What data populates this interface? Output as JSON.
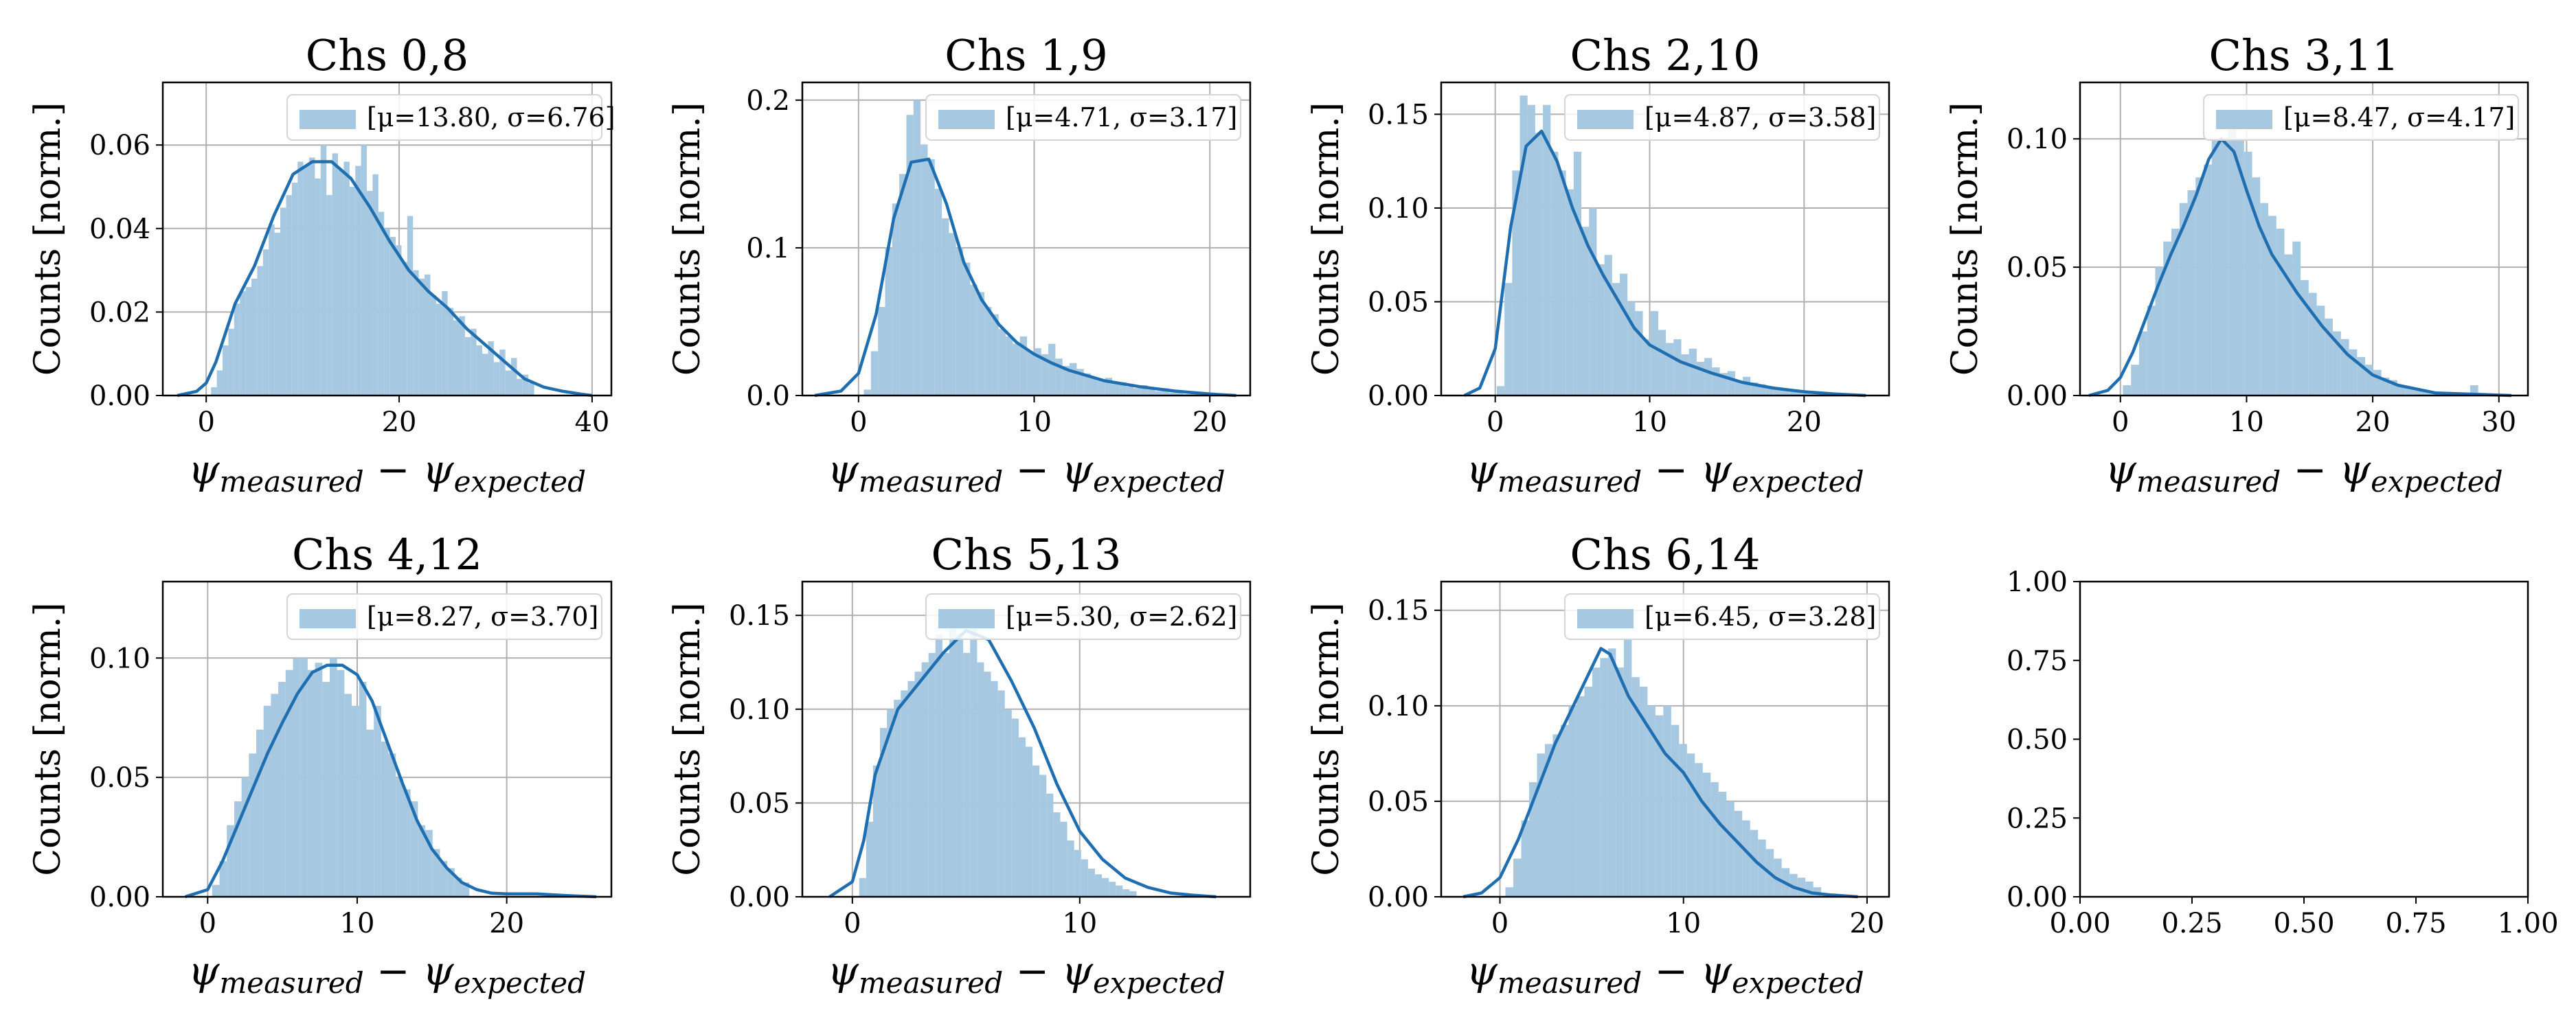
{
  "figure": {
    "xlabel_symbol": "ψ",
    "xlabel_sub1": "measured",
    "xlabel_minus": " − ",
    "xlabel_sub2": "expected",
    "ylabel": "Counts [norm.]"
  },
  "chart_data": [
    {
      "type": "bar",
      "title": "Chs 0,8",
      "legend": {
        "label": "[μ=13.80, σ=6.76]",
        "placement": "upper-right"
      },
      "xlim": [
        -4.5,
        42
      ],
      "ylim": [
        0,
        0.075
      ],
      "xticks": [
        0,
        20,
        40
      ],
      "yticks": [
        0.0,
        0.02,
        0.04,
        0.06
      ],
      "ytick_labels": [
        "0.00",
        "0.02",
        "0.04",
        "0.06"
      ],
      "grid": true,
      "hist": {
        "range": [
          0.5,
          34
        ],
        "values": [
          0.002,
          0.006,
          0.012,
          0.016,
          0.022,
          0.025,
          0.026,
          0.028,
          0.031,
          0.035,
          0.041,
          0.039,
          0.045,
          0.048,
          0.051,
          0.056,
          0.055,
          0.057,
          0.052,
          0.06,
          0.048,
          0.058,
          0.054,
          0.056,
          0.05,
          0.055,
          0.06,
          0.049,
          0.053,
          0.044,
          0.04,
          0.038,
          0.036,
          0.032,
          0.043,
          0.03,
          0.028,
          0.029,
          0.024,
          0.022,
          0.025,
          0.021,
          0.018,
          0.019,
          0.014,
          0.016,
          0.012,
          0.01,
          0.013,
          0.008,
          0.011,
          0.006,
          0.009,
          0.004,
          0.005,
          0.003
        ]
      },
      "kde": {
        "x": [
          -3,
          -1,
          0,
          1,
          2,
          3,
          5,
          7,
          9,
          11,
          13,
          15,
          17,
          19,
          21,
          23,
          25,
          27,
          29,
          31,
          33,
          35,
          37,
          39,
          40
        ],
        "y": [
          0,
          0.001,
          0.003,
          0.008,
          0.015,
          0.022,
          0.031,
          0.043,
          0.053,
          0.056,
          0.056,
          0.052,
          0.045,
          0.037,
          0.03,
          0.025,
          0.021,
          0.016,
          0.012,
          0.008,
          0.004,
          0.002,
          0.001,
          0.0003,
          0
        ]
      }
    },
    {
      "type": "bar",
      "title": "Chs 1,9",
      "legend": {
        "label": "[μ=4.71, σ=3.17]",
        "placement": "upper-right"
      },
      "xlim": [
        -3.2,
        22.3
      ],
      "ylim": [
        0,
        0.212
      ],
      "xticks": [
        0,
        10,
        20
      ],
      "yticks": [
        0.0,
        0.1,
        0.2
      ],
      "ytick_labels": [
        "0.0",
        "0.1",
        "0.2"
      ],
      "grid": true,
      "hist": {
        "range": [
          0.3,
          20.5
        ],
        "values": [
          0.004,
          0.03,
          0.06,
          0.1,
          0.13,
          0.15,
          0.19,
          0.2,
          0.17,
          0.16,
          0.14,
          0.12,
          0.11,
          0.1,
          0.09,
          0.075,
          0.07,
          0.06,
          0.055,
          0.045,
          0.04,
          0.035,
          0.04,
          0.03,
          0.032,
          0.028,
          0.035,
          0.025,
          0.02,
          0.022,
          0.018,
          0.015,
          0.012,
          0.01,
          0.012,
          0.008,
          0.009,
          0.006,
          0.005,
          0.007,
          0.004,
          0.003,
          0.005,
          0.002,
          0.003,
          0.001,
          0.002,
          0.001,
          0.001,
          0.0005
        ]
      },
      "kde": {
        "x": [
          -2.5,
          -1,
          0,
          1,
          2,
          3,
          4,
          5,
          6,
          7,
          8,
          9,
          10,
          11,
          12,
          14,
          16,
          18,
          20,
          21.5
        ],
        "y": [
          0,
          0.003,
          0.015,
          0.055,
          0.12,
          0.158,
          0.16,
          0.13,
          0.09,
          0.065,
          0.048,
          0.036,
          0.028,
          0.022,
          0.017,
          0.01,
          0.006,
          0.003,
          0.001,
          0
        ]
      }
    },
    {
      "type": "bar",
      "title": "Chs 2,10",
      "legend": {
        "label": "[μ=4.87, σ=3.58]",
        "placement": "upper-right"
      },
      "xlim": [
        -3.5,
        25.5
      ],
      "ylim": [
        0,
        0.167
      ],
      "xticks": [
        0,
        10,
        20
      ],
      "yticks": [
        0.0,
        0.05,
        0.1,
        0.15
      ],
      "ytick_labels": [
        "0.00",
        "0.05",
        "0.10",
        "0.15"
      ],
      "grid": true,
      "hist": {
        "range": [
          0.1,
          22.5
        ],
        "values": [
          0.005,
          0.06,
          0.12,
          0.16,
          0.155,
          0.14,
          0.155,
          0.13,
          0.12,
          0.11,
          0.13,
          0.09,
          0.1,
          0.07,
          0.075,
          0.06,
          0.065,
          0.05,
          0.045,
          0.03,
          0.045,
          0.035,
          0.028,
          0.03,
          0.022,
          0.025,
          0.018,
          0.02,
          0.015,
          0.012,
          0.013,
          0.008,
          0.01,
          0.007,
          0.006,
          0.005,
          0.004,
          0.003,
          0.003,
          0.002,
          0.002,
          0.001,
          0.0015,
          0.001,
          0.0008
        ]
      },
      "kde": {
        "x": [
          -2,
          -1,
          0,
          1,
          2,
          3,
          4,
          5,
          6,
          7,
          8,
          9,
          10,
          12,
          14,
          16,
          18,
          20,
          22,
          24
        ],
        "y": [
          0,
          0.004,
          0.025,
          0.09,
          0.133,
          0.141,
          0.125,
          0.1,
          0.08,
          0.064,
          0.05,
          0.036,
          0.027,
          0.018,
          0.012,
          0.007,
          0.004,
          0.002,
          0.0008,
          0
        ]
      }
    },
    {
      "type": "bar",
      "title": "Chs 3,11",
      "legend": {
        "label": "[μ=8.47, σ=4.17]",
        "placement": "upper-right"
      },
      "xlim": [
        -3.2,
        32.3
      ],
      "ylim": [
        0,
        0.122
      ],
      "xticks": [
        0,
        10,
        20,
        30
      ],
      "yticks": [
        0.0,
        0.05,
        0.1
      ],
      "ytick_labels": [
        "0.00",
        "0.05",
        "0.10"
      ],
      "grid": true,
      "hist": {
        "range": [
          0.2,
          29
        ],
        "values": [
          0.004,
          0.012,
          0.025,
          0.035,
          0.05,
          0.06,
          0.065,
          0.075,
          0.08,
          0.085,
          0.09,
          0.1,
          0.1,
          0.11,
          0.1,
          0.095,
          0.085,
          0.075,
          0.07,
          0.065,
          0.055,
          0.06,
          0.045,
          0.04,
          0.035,
          0.03,
          0.025,
          0.022,
          0.018,
          0.015,
          0.012,
          0.01,
          0.007,
          0.006,
          0.004,
          0.003,
          0.002,
          0.002,
          0.001,
          0.001,
          0.0005,
          0.0008,
          0.001,
          0.004,
          0.001
        ]
      },
      "kde": {
        "x": [
          -2.5,
          -1,
          0,
          1,
          2,
          3,
          4,
          5,
          6,
          7,
          8,
          9,
          10,
          11,
          12,
          14,
          16,
          18,
          20,
          22,
          25,
          28,
          31
        ],
        "y": [
          0,
          0.002,
          0.007,
          0.017,
          0.03,
          0.043,
          0.055,
          0.066,
          0.078,
          0.092,
          0.1,
          0.095,
          0.08,
          0.066,
          0.055,
          0.04,
          0.027,
          0.016,
          0.008,
          0.004,
          0.001,
          0.0005,
          0
        ]
      }
    },
    {
      "type": "bar",
      "title": "Chs 4,12",
      "legend": {
        "label": "[μ=8.27, σ=3.70]",
        "placement": "upper-right"
      },
      "xlim": [
        -3.0,
        27.0
      ],
      "ylim": [
        0,
        0.132
      ],
      "xticks": [
        0,
        10,
        20
      ],
      "yticks": [
        0.0,
        0.05,
        0.1
      ],
      "ytick_labels": [
        "0.00",
        "0.05",
        "0.10"
      ],
      "grid": true,
      "hist": {
        "range": [
          0.3,
          17.5
        ],
        "values": [
          0.005,
          0.015,
          0.03,
          0.04,
          0.05,
          0.06,
          0.07,
          0.08,
          0.085,
          0.09,
          0.095,
          0.1,
          0.1,
          0.095,
          0.098,
          0.09,
          0.1,
          0.095,
          0.085,
          0.08,
          0.09,
          0.07,
          0.08,
          0.065,
          0.06,
          0.05,
          0.045,
          0.04,
          0.03,
          0.028,
          0.02,
          0.015,
          0.012,
          0.008,
          0.006
        ]
      },
      "kde": {
        "x": [
          -1.5,
          0,
          1,
          2,
          3,
          4,
          5,
          6,
          7,
          8,
          9,
          10,
          11,
          12,
          13,
          14,
          15,
          16,
          17,
          18,
          19,
          20,
          22,
          24,
          26
        ],
        "y": [
          0,
          0.003,
          0.015,
          0.03,
          0.045,
          0.06,
          0.073,
          0.085,
          0.094,
          0.097,
          0.097,
          0.093,
          0.082,
          0.065,
          0.048,
          0.032,
          0.02,
          0.012,
          0.006,
          0.003,
          0.0015,
          0.0012,
          0.0012,
          0.0005,
          0
        ]
      }
    },
    {
      "type": "bar",
      "title": "Chs 5,13",
      "legend": {
        "label": "[μ=5.30, σ=2.62]",
        "placement": "upper-right"
      },
      "xlim": [
        -2.2,
        17.5
      ],
      "ylim": [
        0,
        0.168
      ],
      "xticks": [
        0,
        10
      ],
      "yticks": [
        0.0,
        0.05,
        0.1,
        0.15
      ],
      "ytick_labels": [
        "0.00",
        "0.05",
        "0.10",
        "0.15"
      ],
      "grid": true,
      "hist": {
        "range": [
          0.3,
          12.5
        ],
        "values": [
          0.01,
          0.04,
          0.07,
          0.09,
          0.1,
          0.105,
          0.11,
          0.115,
          0.12,
          0.125,
          0.13,
          0.14,
          0.13,
          0.145,
          0.14,
          0.13,
          0.145,
          0.125,
          0.12,
          0.115,
          0.11,
          0.1,
          0.095,
          0.085,
          0.08,
          0.07,
          0.065,
          0.055,
          0.045,
          0.04,
          0.03,
          0.025,
          0.02,
          0.015,
          0.012,
          0.01,
          0.008,
          0.006,
          0.004,
          0.003
        ]
      },
      "kde": {
        "x": [
          -1,
          0,
          0.5,
          1,
          2,
          3,
          4,
          5,
          6,
          7,
          8,
          9,
          10,
          11,
          12,
          13,
          14,
          15,
          16
        ],
        "y": [
          0,
          0.008,
          0.03,
          0.065,
          0.1,
          0.115,
          0.13,
          0.142,
          0.137,
          0.115,
          0.09,
          0.06,
          0.035,
          0.02,
          0.01,
          0.005,
          0.002,
          0.0008,
          0
        ]
      }
    },
    {
      "type": "bar",
      "title": "Chs 6,14",
      "legend": {
        "label": "[μ=6.45, σ=3.28]",
        "placement": "upper-right"
      },
      "xlim": [
        -3.2,
        21.2
      ],
      "ylim": [
        0,
        0.165
      ],
      "xticks": [
        0,
        10,
        20
      ],
      "yticks": [
        0.0,
        0.05,
        0.1,
        0.15
      ],
      "ytick_labels": [
        "0.00",
        "0.05",
        "0.10",
        "0.15"
      ],
      "grid": true,
      "hist": {
        "range": [
          0.3,
          17.5
        ],
        "values": [
          0.005,
          0.02,
          0.04,
          0.06,
          0.075,
          0.08,
          0.085,
          0.09,
          0.1,
          0.105,
          0.11,
          0.12,
          0.125,
          0.13,
          0.12,
          0.135,
          0.115,
          0.11,
          0.1,
          0.095,
          0.1,
          0.09,
          0.08,
          0.075,
          0.07,
          0.065,
          0.06,
          0.055,
          0.05,
          0.045,
          0.04,
          0.035,
          0.03,
          0.025,
          0.02,
          0.015,
          0.012,
          0.01,
          0.008,
          0.005
        ]
      },
      "kde": {
        "x": [
          -2,
          -1,
          0,
          1,
          2,
          3,
          4,
          5,
          5.5,
          6,
          7,
          8,
          9,
          10,
          11,
          12,
          13,
          14,
          15,
          16,
          17,
          18,
          19.5
        ],
        "y": [
          0,
          0.002,
          0.01,
          0.03,
          0.055,
          0.08,
          0.1,
          0.12,
          0.13,
          0.127,
          0.105,
          0.09,
          0.075,
          0.065,
          0.05,
          0.038,
          0.028,
          0.018,
          0.01,
          0.005,
          0.002,
          0.001,
          0
        ]
      }
    },
    {
      "type": "bar",
      "title": "",
      "empty": true,
      "xlim": [
        0,
        1
      ],
      "ylim": [
        0,
        1
      ],
      "xticks": [
        0,
        0.25,
        0.5,
        0.75,
        1.0
      ],
      "xtick_labels": [
        "0.00",
        "0.25",
        "0.50",
        "0.75",
        "1.00"
      ],
      "yticks": [
        0,
        0.25,
        0.5,
        0.75,
        1.0
      ],
      "ytick_labels": [
        "0.00",
        "0.25",
        "0.50",
        "0.75",
        "1.00"
      ],
      "grid": false
    }
  ],
  "colors": {
    "bar": "#a6c8e1",
    "line": "#1f6eb0",
    "grid": "#b0b0b0",
    "axes": "#000000"
  }
}
